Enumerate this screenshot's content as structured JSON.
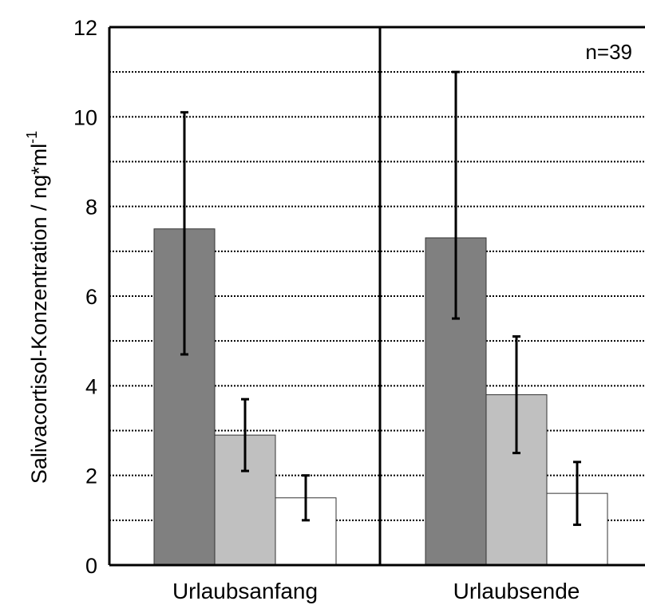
{
  "chart_data": {
    "type": "bar",
    "title": "",
    "xlabel": "",
    "ylabel": "Salivacortisol-Konzentration / ng*ml",
    "ylabel_superscript": "-1",
    "categories": [
      "Urlaubsanfang",
      "Urlaubsende"
    ],
    "ylim": [
      0,
      12
    ],
    "yticks": [
      0,
      2,
      4,
      6,
      8,
      10,
      12
    ],
    "grid": true,
    "annotation": "n=39",
    "series": [
      {
        "color": "#808080",
        "values": [
          7.5,
          7.3
        ],
        "error_low": [
          4.7,
          5.5
        ],
        "error_high": [
          10.1,
          11.0
        ]
      },
      {
        "color": "#c0c0c0",
        "values": [
          2.9,
          3.8
        ],
        "error_low": [
          2.1,
          2.5
        ],
        "error_high": [
          3.7,
          5.1
        ]
      },
      {
        "color": "#ffffff",
        "values": [
          1.5,
          1.6
        ],
        "error_low": [
          1.0,
          0.9
        ],
        "error_high": [
          2.0,
          2.3
        ]
      }
    ]
  }
}
